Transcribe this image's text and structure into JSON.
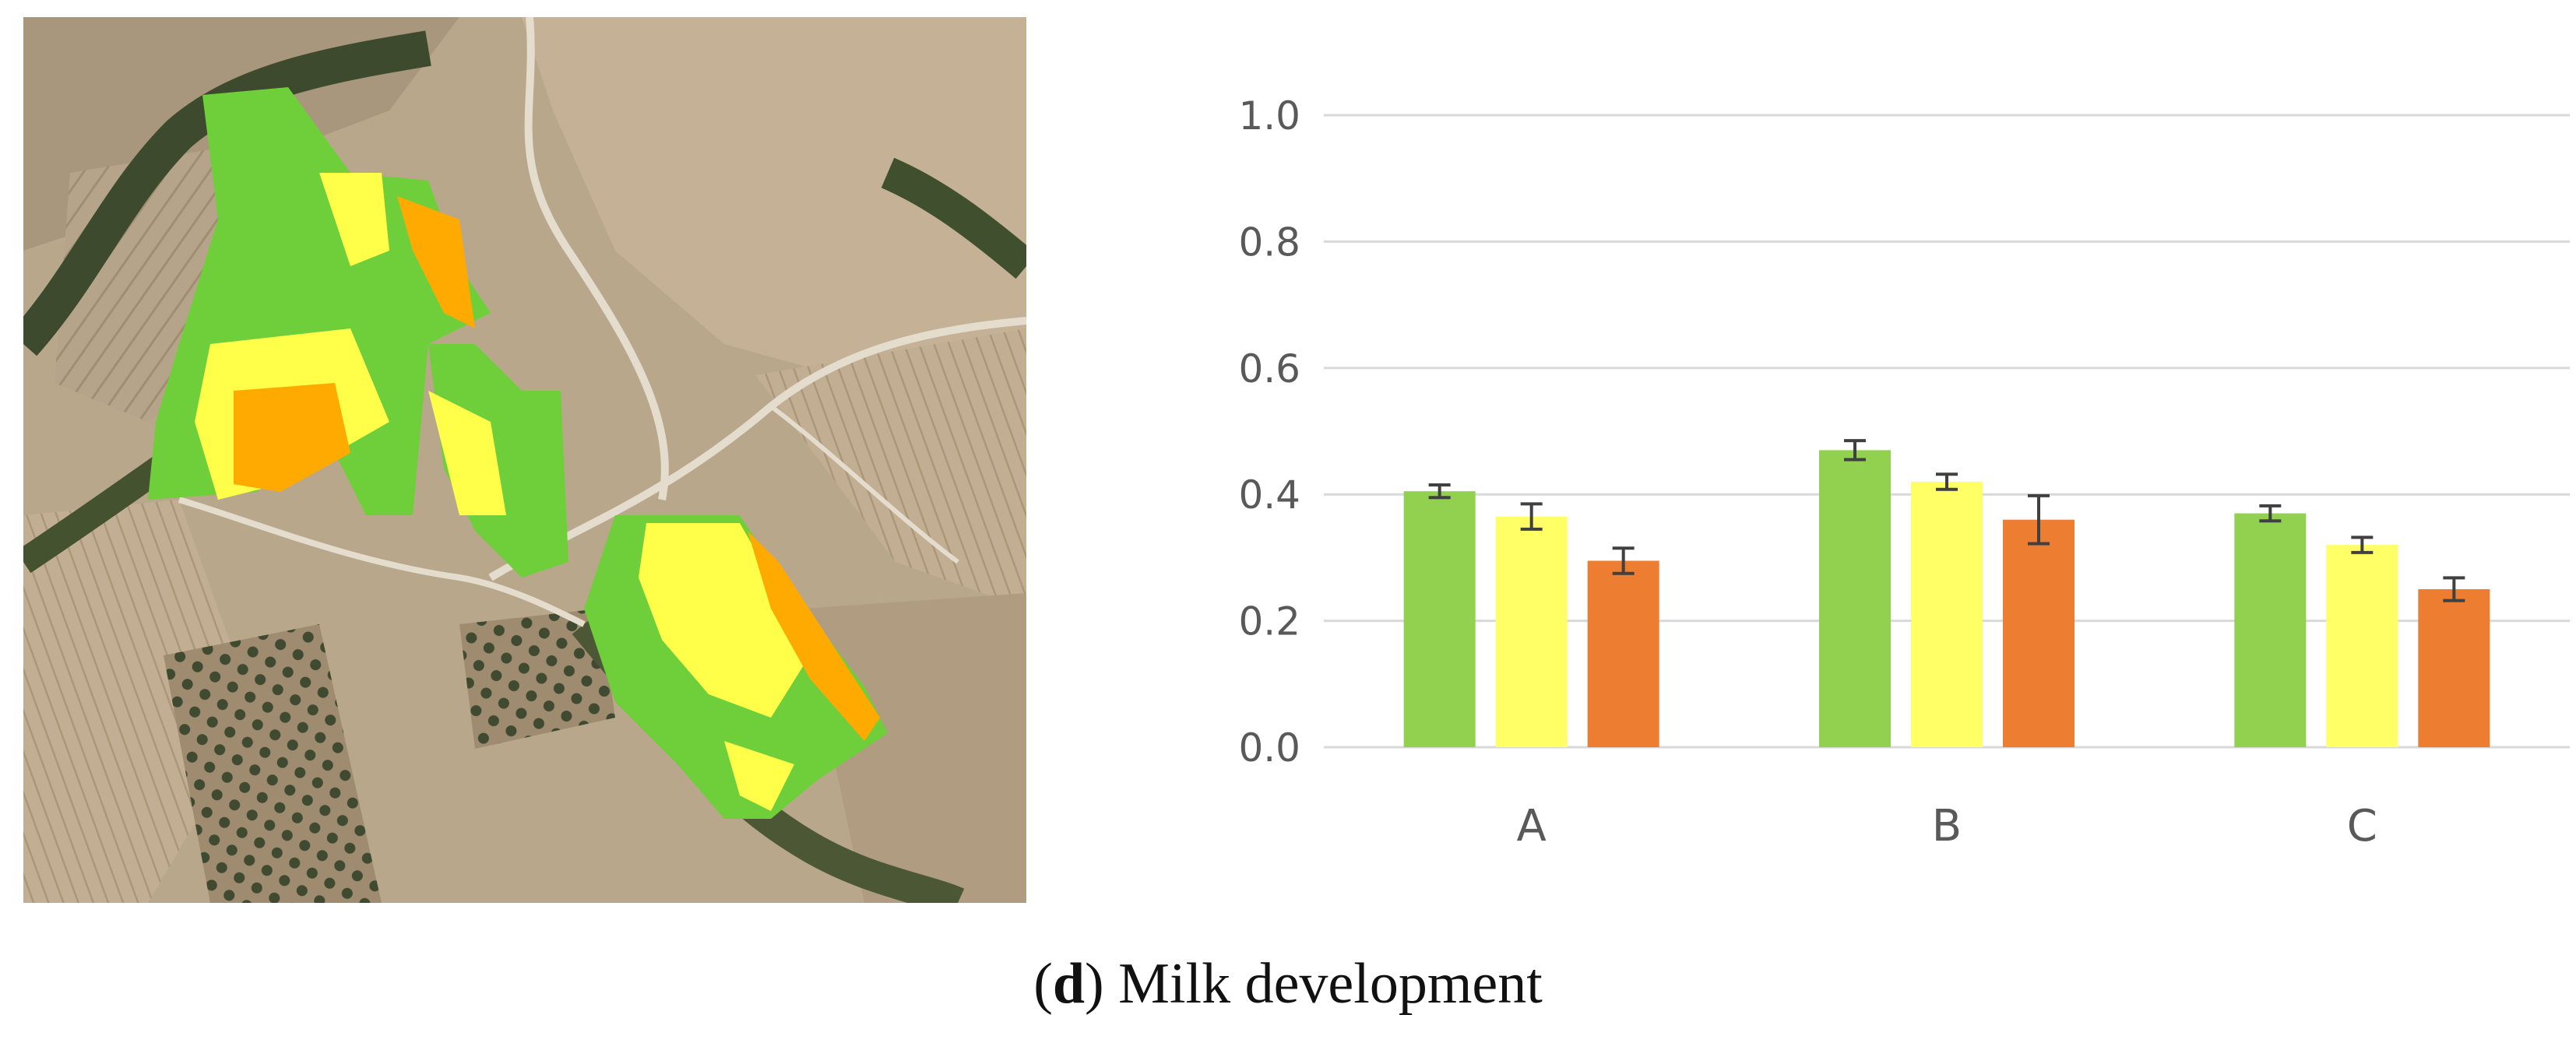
{
  "caption": {
    "letter": "d",
    "text": "Milk development"
  },
  "colors": {
    "green": "#92d050",
    "yellow": "#ffff66",
    "orange": "#ed7d31",
    "grid": "#d9d9d9",
    "axis_text": "#595959",
    "error_bar": "#404040",
    "map_green": "#6ecf3a",
    "map_yellow": "#ffff4a",
    "map_orange": "#ffaa00"
  },
  "chart_data": {
    "type": "bar",
    "title": "",
    "xlabel": "",
    "ylabel": "",
    "categories": [
      "A",
      "B",
      "C"
    ],
    "ylim": [
      0,
      1.0
    ],
    "yticks": [
      "0.0",
      "0.2",
      "0.4",
      "0.6",
      "0.8",
      "1.0"
    ],
    "ytick_values": [
      0,
      0.2,
      0.4,
      0.6,
      0.8,
      1.0
    ],
    "grid": true,
    "legend": "none",
    "series": [
      {
        "color": "#92d050",
        "values": [
          0.405,
          0.47,
          0.37
        ],
        "errors": [
          0.01,
          0.015,
          0.012
        ]
      },
      {
        "color": "#ffff66",
        "values": [
          0.365,
          0.42,
          0.32
        ],
        "errors": [
          0.02,
          0.012,
          0.012
        ]
      },
      {
        "color": "#ed7d31",
        "values": [
          0.295,
          0.36,
          0.25
        ],
        "errors": [
          0.02,
          0.038,
          0.018
        ]
      }
    ]
  }
}
